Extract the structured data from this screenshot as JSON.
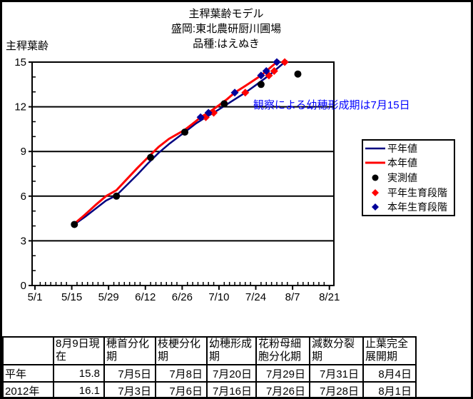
{
  "chart": {
    "title_lines": [
      "主稈葉齢モデル",
      "盛岡:東北農研厨川圃場",
      "品種:はえぬき"
    ],
    "y_axis_title": "主稈葉齢",
    "annotation_text": "観察による幼穂形成期は7月15日",
    "annotation_color": "#0000FF",
    "legend": [
      {
        "label": "平年値",
        "marker": "line",
        "color": "#000080",
        "width": 2.5
      },
      {
        "label": "本年値",
        "marker": "line",
        "color": "#FF0000",
        "width": 3
      },
      {
        "label": "実測値",
        "marker": "circle",
        "color": "#000000"
      },
      {
        "label": "平年生育段階",
        "marker": "diamond",
        "color": "#FF0000"
      },
      {
        "label": "本年生育段階",
        "marker": "diamond",
        "color": "#000099"
      }
    ]
  },
  "chart_data": {
    "type": "line",
    "title": "主稈葉齢モデル 盛岡:東北農研厨川圃場 品種:はえぬき",
    "xlabel": "",
    "ylabel": "主稈葉齢",
    "ylim": [
      0,
      15
    ],
    "y_major_ticks": [
      0,
      3,
      6,
      9,
      12,
      15
    ],
    "y_minor_interval": 1,
    "x_tick_labels": [
      "5/1",
      "5/15",
      "5/29",
      "6/12",
      "6/26",
      "7/10",
      "7/24",
      "8/7",
      "8/21"
    ],
    "x_major_interval_days": 14,
    "x_minor_interval_days": 2,
    "grid": "horizontal-major",
    "legend_position": "right",
    "annotation": "観察による幼穂形成期は7月15日",
    "series": [
      {
        "name": "平年値",
        "type": "line",
        "color": "#000080",
        "stroke_width": 2.5,
        "points": [
          [
            "5/16",
            4.1
          ],
          [
            "5/20",
            4.6
          ],
          [
            "5/24",
            5.15
          ],
          [
            "5/28",
            5.7
          ],
          [
            "6/1",
            6.05
          ],
          [
            "6/5",
            6.75
          ],
          [
            "6/9",
            7.45
          ],
          [
            "6/13",
            8.2
          ],
          [
            "6/17",
            8.9
          ],
          [
            "6/21",
            9.5
          ],
          [
            "6/24",
            9.9
          ],
          [
            "6/27",
            10.3
          ],
          [
            "7/1",
            10.85
          ],
          [
            "7/5",
            11.3
          ],
          [
            "7/8",
            11.6
          ],
          [
            "7/12",
            12.05
          ],
          [
            "7/16",
            12.5
          ],
          [
            "7/20",
            12.95
          ],
          [
            "7/24",
            13.45
          ],
          [
            "7/29",
            14.1
          ],
          [
            "7/31",
            14.4
          ],
          [
            "8/4",
            15.0
          ],
          [
            "8/5",
            15.1
          ]
        ]
      },
      {
        "name": "本年値",
        "type": "line",
        "color": "#FF0000",
        "stroke_width": 3,
        "points": [
          [
            "5/16",
            4.15
          ],
          [
            "5/20",
            4.75
          ],
          [
            "5/24",
            5.4
          ],
          [
            "5/28",
            6.0
          ],
          [
            "6/1",
            6.4
          ],
          [
            "6/5",
            7.15
          ],
          [
            "6/9",
            7.9
          ],
          [
            "6/13",
            8.6
          ],
          [
            "6/17",
            9.3
          ],
          [
            "6/21",
            9.85
          ],
          [
            "6/24",
            10.15
          ],
          [
            "6/27",
            10.45
          ],
          [
            "7/1",
            11.0
          ],
          [
            "7/3",
            11.3
          ],
          [
            "7/6",
            11.6
          ],
          [
            "7/10",
            12.1
          ],
          [
            "7/13",
            12.5
          ],
          [
            "7/16",
            12.95
          ],
          [
            "7/20",
            13.4
          ],
          [
            "7/23",
            13.75
          ],
          [
            "7/26",
            14.1
          ],
          [
            "7/28",
            14.4
          ],
          [
            "8/1",
            15.0
          ],
          [
            "8/2",
            15.1
          ]
        ]
      },
      {
        "name": "実測値",
        "type": "scatter",
        "marker": "circle",
        "color": "#000000",
        "points": [
          [
            "5/16",
            4.1
          ],
          [
            "6/1",
            6.0
          ],
          [
            "6/14",
            8.6
          ],
          [
            "6/27",
            10.3
          ],
          [
            "7/12",
            12.2
          ],
          [
            "7/26",
            13.5
          ],
          [
            "8/9",
            14.2
          ]
        ]
      },
      {
        "name": "平年生育段階",
        "type": "scatter",
        "marker": "diamond",
        "color": "#FF0000",
        "points": [
          [
            "7/5",
            11.3
          ],
          [
            "7/8",
            11.6
          ],
          [
            "7/20",
            12.95
          ],
          [
            "7/29",
            14.1
          ],
          [
            "7/31",
            14.4
          ],
          [
            "8/4",
            15.0
          ]
        ]
      },
      {
        "name": "本年生育段階",
        "type": "scatter",
        "marker": "diamond",
        "color": "#000099",
        "points": [
          [
            "7/3",
            11.3
          ],
          [
            "7/6",
            11.6
          ],
          [
            "7/16",
            12.95
          ],
          [
            "7/26",
            14.1
          ],
          [
            "7/28",
            14.4
          ],
          [
            "8/1",
            15.0
          ]
        ]
      }
    ]
  },
  "table": {
    "headers": [
      "",
      "8月9日現在",
      "穂首分化期",
      "枝梗分化期",
      "幼穂形成期",
      "花粉母細胞分化期",
      "減数分裂期",
      "止葉完全展開期"
    ],
    "rows": [
      {
        "label": "平年",
        "values": [
          "15.8",
          "7月5日",
          "7月8日",
          "7月20日",
          "7月29日",
          "7月31日",
          "8月4日"
        ]
      },
      {
        "label": "2012年",
        "values": [
          "16.1",
          "7月3日",
          "7月6日",
          "7月16日",
          "7月26日",
          "7月28日",
          "8月1日"
        ]
      }
    ]
  }
}
